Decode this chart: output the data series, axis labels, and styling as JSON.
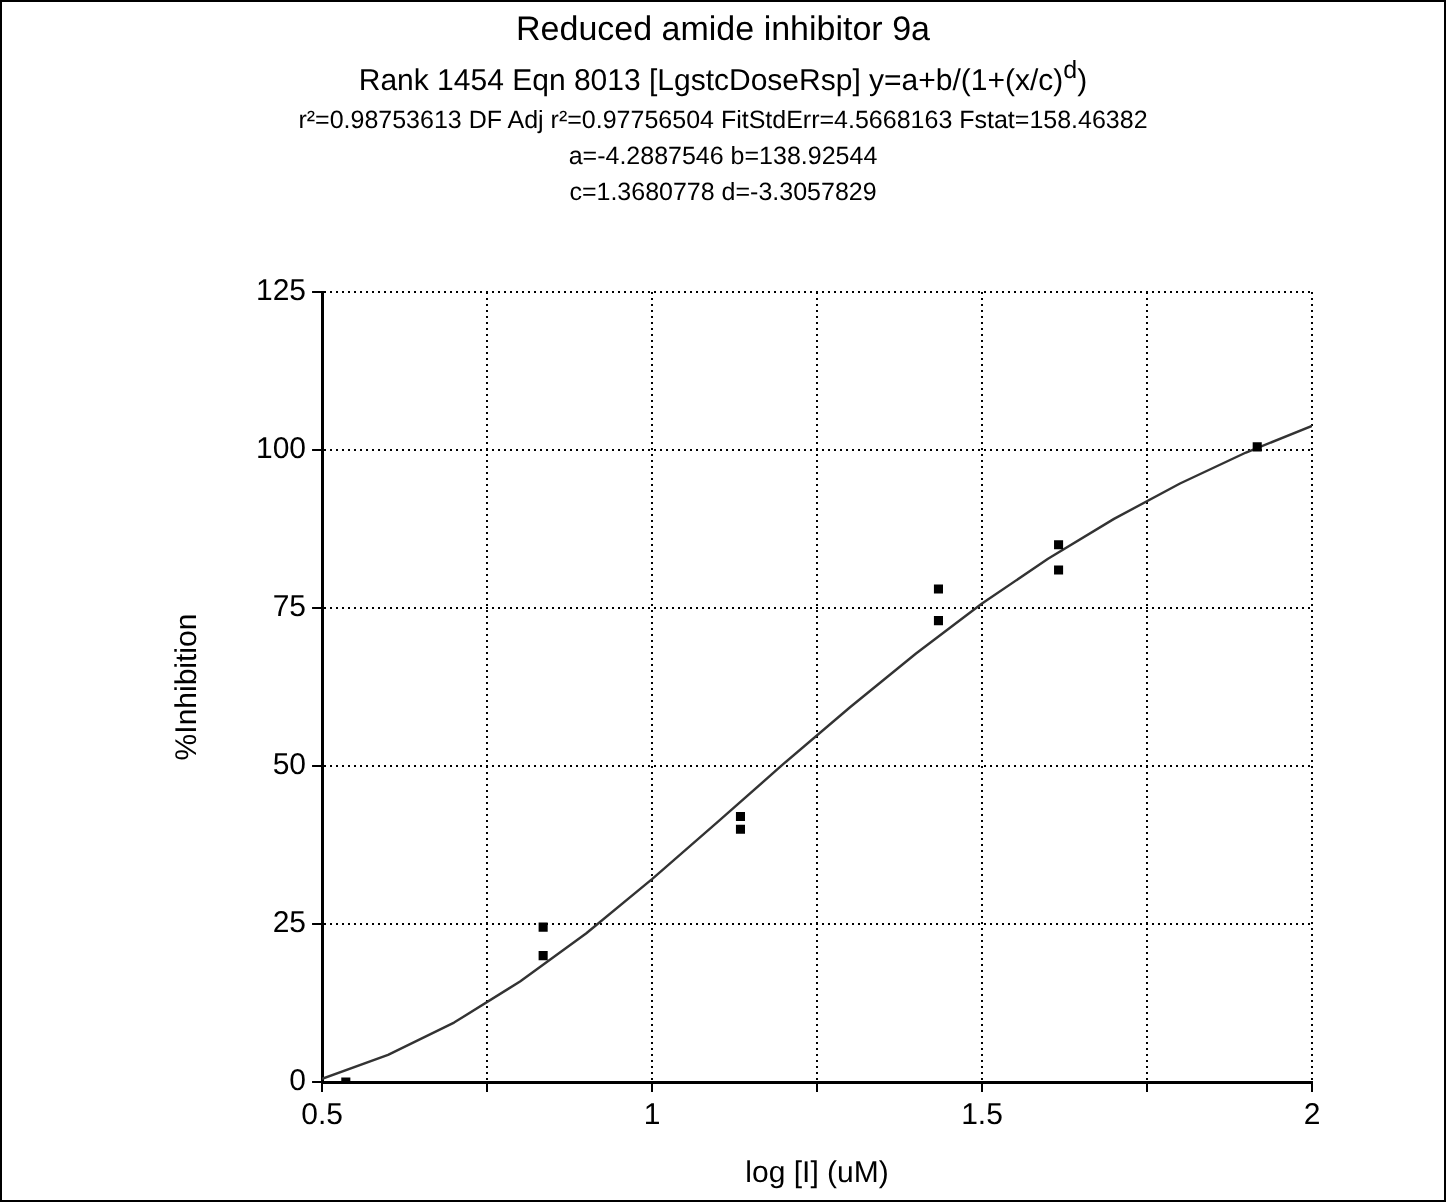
{
  "chart_data": {
    "type": "scatter",
    "title": "Reduced amide inhibitor 9a",
    "subtitle": "Rank 1454   Eqn 8013  [LgstcDoseRsp] y=a+b/(1+(x/c)$^{d}$)",
    "annotations": [
      "r²=0.98753613  DF Adj r²=0.97756504  FitStdErr=4.5668163  Fstat=158.46382",
      "a=-4.2887546 b=138.92544",
      "c=1.3680778 d=-3.3057829"
    ],
    "xlabel": "log [I] (uM)",
    "ylabel": "%Inhibition",
    "xlim": [
      0.5,
      2
    ],
    "xticks": [
      0.5,
      {
        "value": 0.75,
        "label": null
      },
      1,
      {
        "value": 1.25,
        "label": null
      },
      1.5,
      {
        "value": 1.75,
        "label": null
      },
      2
    ],
    "ylim": [
      0,
      125
    ],
    "yticks": [
      0,
      25,
      50,
      75,
      100,
      125
    ],
    "grid": true,
    "legend": false,
    "series": [
      {
        "type": "scatter",
        "color": "#000000",
        "marker": "square",
        "x": [
          0.536,
          0.835,
          0.835,
          1.134,
          1.134,
          1.434,
          1.434,
          1.616,
          1.616,
          1.917
        ],
        "values": [
          0,
          24.5,
          20,
          42,
          40,
          78,
          73,
          85,
          81,
          100.5
        ]
      },
      {
        "type": "line",
        "color": "#333333",
        "marker": "none",
        "x": [
          0.5,
          0.6,
          0.7,
          0.8,
          0.9,
          1.0,
          1.1,
          1.2,
          1.3,
          1.4,
          1.5,
          1.6,
          1.7,
          1.8,
          1.9,
          2.0
        ],
        "values": [
          0.5,
          4.3,
          9.4,
          15.9,
          23.5,
          32.1,
          41.2,
          50.4,
          59.3,
          67.8,
          75.7,
          82.8,
          89.1,
          94.7,
          99.6,
          103.8
        ]
      }
    ]
  }
}
